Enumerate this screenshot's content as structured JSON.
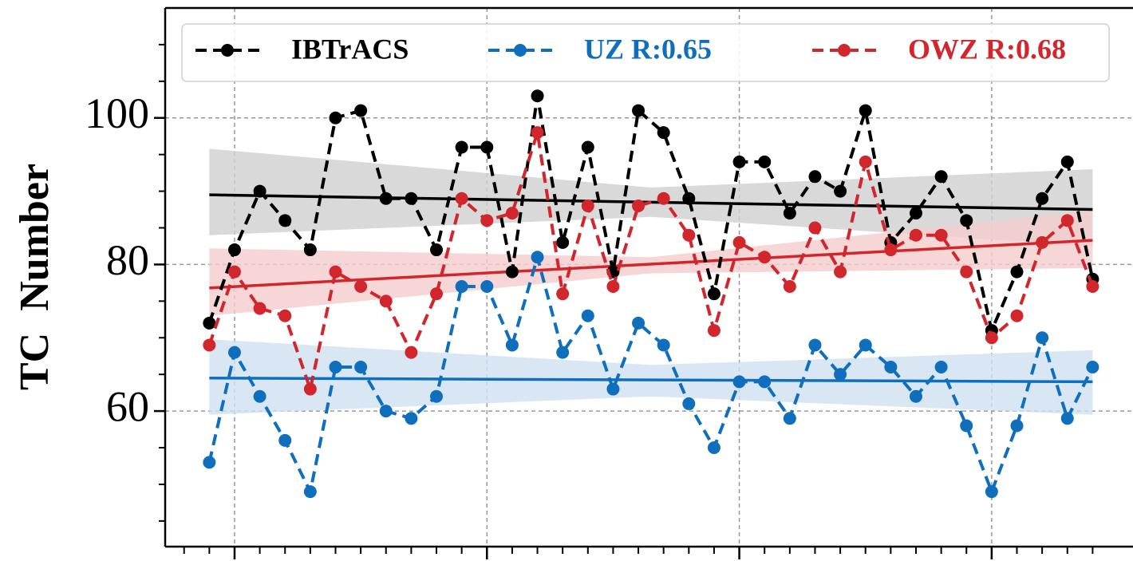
{
  "chart_data": {
    "type": "line",
    "ylabel": "TC Number",
    "x": [
      0,
      1,
      2,
      3,
      4,
      5,
      6,
      7,
      8,
      9,
      10,
      11,
      12,
      13,
      14,
      15,
      16,
      17,
      18,
      19,
      20,
      21,
      22,
      23,
      24,
      25,
      26,
      27,
      28,
      29,
      30,
      31,
      32,
      33,
      34,
      35
    ],
    "xlim": [
      -1.75,
      36.6
    ],
    "xticks": [
      1,
      11,
      21,
      31
    ],
    "xminorticks": [
      -1,
      0,
      2,
      3,
      4,
      5,
      6,
      7,
      8,
      9,
      10,
      12,
      13,
      14,
      15,
      16,
      17,
      18,
      19,
      20,
      22,
      23,
      24,
      25,
      26,
      27,
      28,
      29,
      30,
      32,
      33,
      34,
      35
    ],
    "ylim": [
      41.5,
      115
    ],
    "yticks": [
      60,
      80,
      100
    ],
    "yminorticks": [
      45,
      50,
      55,
      65,
      70,
      75,
      85,
      90,
      95,
      105,
      110
    ],
    "grid": true,
    "legend": "top",
    "series": [
      {
        "name": "IBTrACS",
        "color": "#000000",
        "values": [
          72,
          82,
          90,
          86,
          82,
          100,
          101,
          89,
          89,
          82,
          96,
          96,
          79,
          103,
          83,
          96,
          79,
          101,
          98,
          89,
          76,
          94,
          94,
          87,
          92,
          90,
          101,
          83,
          87,
          92,
          86,
          71,
          79,
          89,
          94,
          78
        ],
        "trend": {
          "x": [
            0,
            35
          ],
          "values": [
            89.5,
            87.5
          ],
          "band_x": [
            0,
            17.5,
            35
          ],
          "band_lower": [
            84,
            86.5,
            82.5
          ],
          "band_upper": [
            95.8,
            90.5,
            93
          ],
          "band_color": "#cfcfcf"
        }
      },
      {
        "name": "UZ R:0.65",
        "color": "#0f6fbd",
        "values": [
          53,
          68,
          62,
          56,
          49,
          66,
          66,
          60,
          59,
          62,
          77,
          77,
          69,
          81,
          68,
          73,
          63,
          72,
          69,
          61,
          55,
          64,
          64,
          59,
          69,
          65,
          69,
          66,
          62,
          66,
          58,
          49,
          58,
          70,
          59,
          66
        ],
        "trend": {
          "x": [
            0,
            35
          ],
          "values": [
            64.5,
            64
          ],
          "band_x": [
            0,
            17.5,
            35
          ],
          "band_lower": [
            59.5,
            62,
            59.5
          ],
          "band_upper": [
            69.8,
            66.3,
            68.3
          ],
          "band_color": "#cfe1f3"
        }
      },
      {
        "name": "OWZ R:0.68",
        "color": "#d1262b",
        "values": [
          69,
          79,
          74,
          73,
          63,
          79,
          77,
          75,
          68,
          76,
          89,
          86,
          87,
          98,
          76,
          88,
          77,
          88,
          89,
          84,
          71,
          83,
          81,
          77,
          85,
          79,
          94,
          82,
          84,
          84,
          79,
          70,
          73,
          83,
          86,
          77
        ],
        "trend": {
          "x": [
            0,
            35
          ],
          "values": [
            76.8,
            83.3
          ],
          "band_x": [
            0,
            17.5,
            35
          ],
          "band_lower": [
            73,
            78.8,
            79.5
          ],
          "band_upper": [
            82.2,
            81,
            87.3
          ],
          "band_color": "#f4cccd"
        }
      }
    ]
  }
}
